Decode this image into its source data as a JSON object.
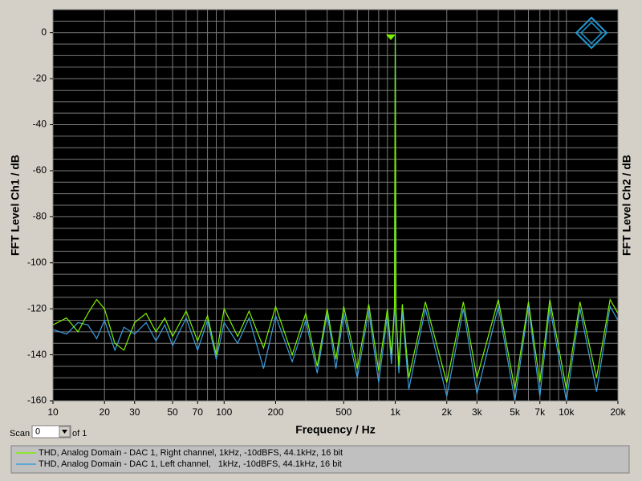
{
  "chart_data": {
    "type": "line",
    "xlabel": "Frequency / Hz",
    "ylabel": "FFT Level Ch1 / dB",
    "y2label": "FFT Level Ch2 / dB",
    "xscale": "log",
    "xlim": [
      10,
      20000
    ],
    "ylim": [
      -160,
      10
    ],
    "xticks": [
      10,
      20,
      30,
      50,
      70,
      100,
      200,
      500,
      {
        "value": 1000,
        "label": "1k"
      },
      {
        "value": 2000,
        "label": "2k"
      },
      {
        "value": 3000,
        "label": "3k"
      },
      {
        "value": 5000,
        "label": "5k"
      },
      {
        "value": 7000,
        "label": "7k"
      },
      {
        "value": 10000,
        "label": "10k"
      },
      {
        "value": 20000,
        "label": "20k"
      }
    ],
    "yticks": [
      0,
      -20,
      -40,
      -60,
      -80,
      -100,
      -120,
      -140,
      -160
    ],
    "xgrid": [
      10,
      20,
      30,
      40,
      50,
      60,
      70,
      80,
      90,
      100,
      200,
      300,
      400,
      500,
      600,
      700,
      800,
      900,
      1000,
      2000,
      3000,
      4000,
      5000,
      6000,
      7000,
      8000,
      9000,
      10000,
      20000
    ],
    "ygrid": [
      5,
      0,
      -5,
      -10,
      -15,
      -20,
      -25,
      -30,
      -35,
      -40,
      -45,
      -50,
      -55,
      -60,
      -65,
      -70,
      -75,
      -80,
      -85,
      -90,
      -95,
      -100,
      -105,
      -110,
      -115,
      -120,
      -125,
      -130,
      -135,
      -140,
      -145,
      -150,
      -155,
      -160
    ],
    "grid": true,
    "x": [
      10,
      12,
      14,
      16,
      18,
      20,
      23,
      26,
      30,
      35,
      40,
      45,
      50,
      60,
      70,
      80,
      90,
      100,
      120,
      140,
      170,
      200,
      250,
      300,
      350,
      400,
      450,
      500,
      600,
      700,
      800,
      900,
      950,
      990,
      1000,
      1010,
      1050,
      1100,
      1200,
      1500,
      2000,
      2500,
      3000,
      4000,
      5000,
      6000,
      7000,
      8000,
      10000,
      12000,
      15000,
      18000,
      20000
    ],
    "series": [
      {
        "name": "THD, Analog Domain - DAC 1, Left channel,   1kHz, -10dBFS, 44.1kHz, 16 bit",
        "color": "#3a9ee0",
        "values": [
          -129,
          -131,
          -126,
          -127,
          -133,
          -125,
          -138,
          -128,
          -131,
          -126,
          -134,
          -127,
          -136,
          -124,
          -138,
          -125,
          -142,
          -126,
          -135,
          -124,
          -146,
          -123,
          -143,
          -125,
          -148,
          -122,
          -146,
          -122,
          -150,
          -121,
          -152,
          -123,
          -144,
          -121,
          -1,
          -123,
          -148,
          -121,
          -155,
          -120,
          -158,
          -120,
          -157,
          -119,
          -160,
          -119,
          -158,
          -119,
          -160,
          -120,
          -156,
          -119,
          -125
        ]
      },
      {
        "name": "THD, Analog Domain - DAC 1, Right channel, 1kHz, -10dBFS, 44.1kHz, 16 bit",
        "color": "#7cf000",
        "values": [
          -127,
          -124,
          -130,
          -122,
          -116,
          -120,
          -135,
          -138,
          -126,
          -122,
          -130,
          -124,
          -132,
          -121,
          -134,
          -123,
          -140,
          -120,
          -132,
          -121,
          -137,
          -119,
          -140,
          -122,
          -145,
          -120,
          -142,
          -119,
          -146,
          -118,
          -147,
          -120,
          -140,
          -119,
          -1,
          -121,
          -145,
          -118,
          -150,
          -117,
          -152,
          -117,
          -150,
          -116,
          -155,
          -117,
          -152,
          -116,
          -155,
          -117,
          -150,
          -116,
          -122
        ]
      }
    ],
    "scan_label": "Scan",
    "scan_value": "0",
    "scan_of": "of 1"
  }
}
